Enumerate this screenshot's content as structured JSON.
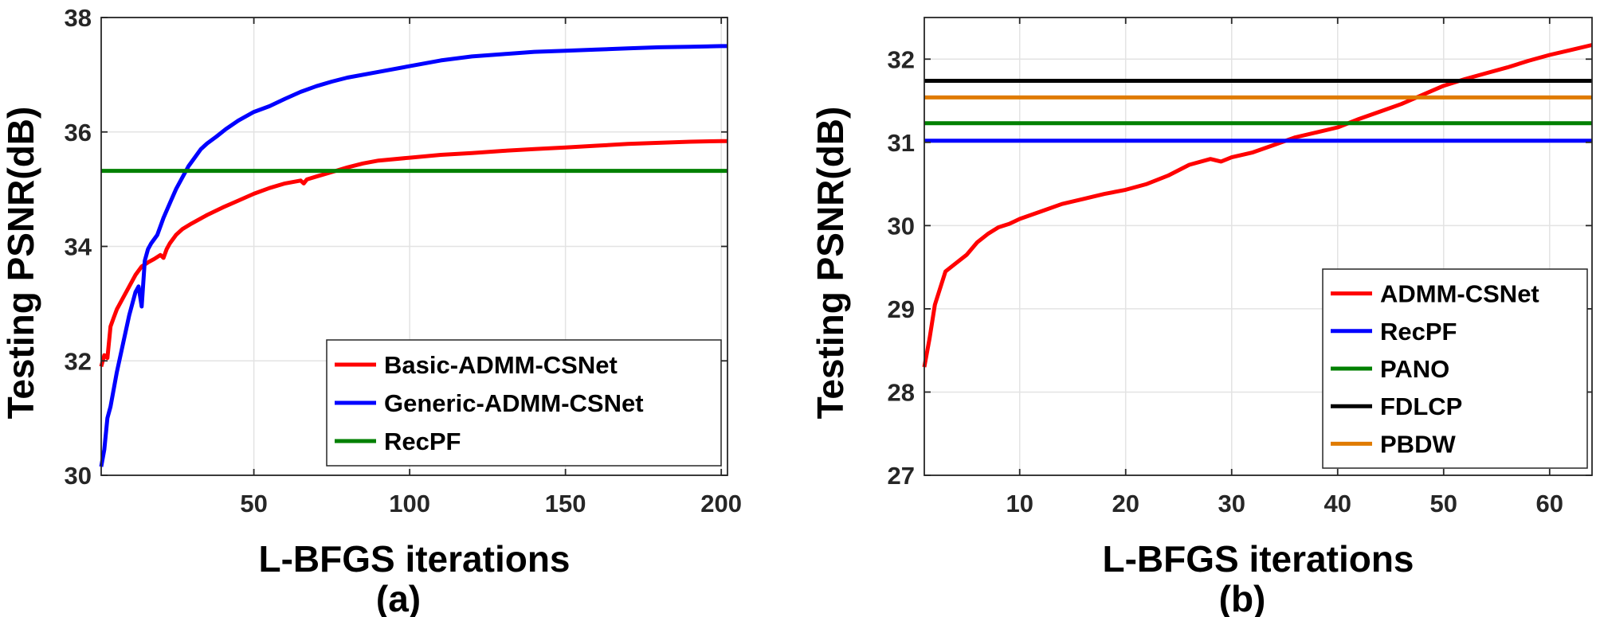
{
  "chart_data": [
    {
      "type": "line",
      "caption": "(a)",
      "xlabel": "L-BFGS iterations",
      "ylabel": "Testing PSNR(dB)",
      "xlim": [
        1,
        202
      ],
      "ylim": [
        30,
        38
      ],
      "xticks": [
        50,
        100,
        150,
        200
      ],
      "yticks": [
        30,
        32,
        34,
        36,
        38
      ],
      "grid": true,
      "legend_position": "bottom-right",
      "series": [
        {
          "name": "Basic-ADMM-CSNet",
          "color": "#ff0000",
          "x": [
            1,
            2,
            3,
            4,
            5,
            6,
            8,
            10,
            12,
            14,
            16,
            18,
            20,
            21,
            22,
            23,
            25,
            27,
            30,
            35,
            40,
            45,
            50,
            55,
            60,
            65,
            66,
            67,
            70,
            75,
            80,
            85,
            90,
            100,
            110,
            120,
            130,
            140,
            150,
            160,
            170,
            180,
            190,
            200,
            202
          ],
          "y": [
            31.9,
            32.1,
            32.05,
            32.6,
            32.75,
            32.9,
            33.1,
            33.3,
            33.5,
            33.65,
            33.72,
            33.78,
            33.85,
            33.8,
            33.95,
            34.05,
            34.2,
            34.3,
            34.4,
            34.55,
            34.68,
            34.8,
            34.92,
            35.02,
            35.1,
            35.15,
            35.1,
            35.17,
            35.22,
            35.3,
            35.38,
            35.45,
            35.5,
            35.55,
            35.6,
            35.63,
            35.67,
            35.7,
            35.73,
            35.76,
            35.79,
            35.81,
            35.83,
            35.84,
            35.84
          ]
        },
        {
          "name": "Generic-ADMM-CSNet",
          "color": "#0000ff",
          "x": [
            1,
            2,
            3,
            4,
            6,
            8,
            10,
            12,
            13,
            14,
            15,
            16,
            17,
            19,
            21,
            23,
            25,
            27,
            29,
            31,
            33,
            35,
            38,
            41,
            45,
            50,
            55,
            60,
            65,
            70,
            75,
            80,
            90,
            100,
            110,
            120,
            130,
            140,
            150,
            160,
            170,
            180,
            190,
            200,
            202
          ],
          "y": [
            30.15,
            30.45,
            31.0,
            31.2,
            31.8,
            32.3,
            32.8,
            33.2,
            33.3,
            32.95,
            33.75,
            33.95,
            34.05,
            34.2,
            34.5,
            34.75,
            35.0,
            35.2,
            35.4,
            35.55,
            35.7,
            35.8,
            35.92,
            36.05,
            36.2,
            36.35,
            36.45,
            36.58,
            36.7,
            36.8,
            36.88,
            36.95,
            37.05,
            37.15,
            37.25,
            37.32,
            37.36,
            37.4,
            37.42,
            37.44,
            37.46,
            37.48,
            37.49,
            37.5,
            37.5
          ]
        },
        {
          "name": "RecPF",
          "color": "#008000",
          "x": [
            1,
            202
          ],
          "y": [
            35.32,
            35.32
          ]
        }
      ]
    },
    {
      "type": "line",
      "caption": "(b)",
      "xlabel": "L-BFGS iterations",
      "ylabel": "Testing PSNR(dB)",
      "xlim": [
        1,
        64
      ],
      "ylim": [
        27,
        32.5
      ],
      "xticks": [
        10,
        20,
        30,
        40,
        50,
        60
      ],
      "yticks": [
        27,
        28,
        29,
        30,
        31,
        32
      ],
      "grid": true,
      "legend_position": "bottom-right",
      "series": [
        {
          "name": "ADMM-CSNet",
          "color": "#ff0000",
          "x": [
            1,
            1.5,
            2,
            3,
            4,
            5,
            6,
            7,
            8,
            9,
            10,
            12,
            14,
            16,
            18,
            20,
            22,
            24,
            26,
            28,
            29,
            30,
            32,
            34,
            36,
            38,
            40,
            42,
            44,
            46,
            48,
            50,
            52,
            54,
            56,
            58,
            60,
            62,
            64
          ],
          "y": [
            28.3,
            28.65,
            29.05,
            29.45,
            29.55,
            29.65,
            29.8,
            29.9,
            29.98,
            30.02,
            30.08,
            30.17,
            30.26,
            30.32,
            30.38,
            30.43,
            30.5,
            30.6,
            30.73,
            30.8,
            30.77,
            30.82,
            30.88,
            30.97,
            31.06,
            31.12,
            31.18,
            31.28,
            31.37,
            31.46,
            31.57,
            31.68,
            31.76,
            31.83,
            31.9,
            31.98,
            32.05,
            32.11,
            32.17
          ]
        },
        {
          "name": "RecPF",
          "color": "#0000ff",
          "x": [
            1,
            64
          ],
          "y": [
            31.02,
            31.02
          ]
        },
        {
          "name": "PANO",
          "color": "#008000",
          "x": [
            1,
            64
          ],
          "y": [
            31.23,
            31.23
          ]
        },
        {
          "name": "FDLCP",
          "color": "#000000",
          "x": [
            1,
            64
          ],
          "y": [
            31.74,
            31.74
          ]
        },
        {
          "name": "PBDW",
          "color": "#e07b00",
          "x": [
            1,
            64
          ],
          "y": [
            31.54,
            31.54
          ]
        }
      ]
    }
  ]
}
